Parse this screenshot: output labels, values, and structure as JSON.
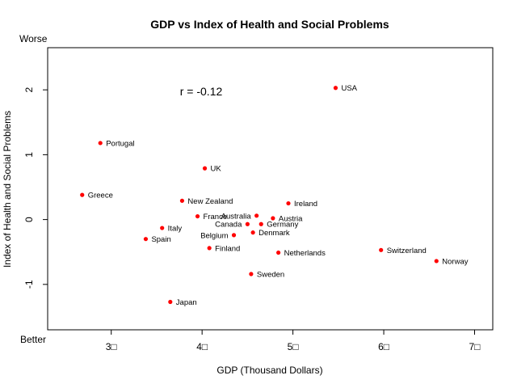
{
  "chart_data": {
    "type": "scatter",
    "title": "GDP vs Index of Health and Social Problems",
    "xlabel": "GDP (Thousand Dollars)",
    "ylabel": "Index of Health and Social Problems",
    "xlim": [
      2.3,
      7.2
    ],
    "ylim": [
      -1.7,
      2.65
    ],
    "x_ticks": [
      3,
      4,
      5,
      6,
      7
    ],
    "x_tick_labels": [
      "3□",
      "4□",
      "5□",
      "6□",
      "7□"
    ],
    "y_ticks": [
      -1,
      0,
      1,
      2
    ],
    "y_tick_labels": [
      "-1",
      "0",
      "1",
      "2"
    ],
    "y_top_label": "Worse",
    "y_bottom_label": "Better",
    "annotation": "r = -0.12",
    "point_color": "#ff0000",
    "grid": false,
    "points": [
      {
        "label": "USA",
        "x": 5.47,
        "y": 2.03,
        "side": "right"
      },
      {
        "label": "Portugal",
        "x": 2.88,
        "y": 1.18,
        "side": "right"
      },
      {
        "label": "UK",
        "x": 4.03,
        "y": 0.79,
        "side": "right"
      },
      {
        "label": "Greece",
        "x": 2.68,
        "y": 0.38,
        "side": "right"
      },
      {
        "label": "New Zealand",
        "x": 3.78,
        "y": 0.29,
        "side": "right"
      },
      {
        "label": "Ireland",
        "x": 4.95,
        "y": 0.25,
        "side": "right"
      },
      {
        "label": "France",
        "x": 3.95,
        "y": 0.05,
        "side": "right"
      },
      {
        "label": "Australia",
        "x": 4.6,
        "y": 0.06,
        "side": "left"
      },
      {
        "label": "Austria",
        "x": 4.78,
        "y": 0.02,
        "side": "right"
      },
      {
        "label": "Canada",
        "x": 4.5,
        "y": -0.07,
        "side": "left"
      },
      {
        "label": "Germany",
        "x": 4.65,
        "y": -0.07,
        "side": "right"
      },
      {
        "label": "Italy",
        "x": 3.56,
        "y": -0.13,
        "side": "right"
      },
      {
        "label": "Denmark",
        "x": 4.56,
        "y": -0.2,
        "side": "right"
      },
      {
        "label": "Belgium",
        "x": 4.35,
        "y": -0.24,
        "side": "left"
      },
      {
        "label": "Spain",
        "x": 3.38,
        "y": -0.3,
        "side": "right"
      },
      {
        "label": "Finland",
        "x": 4.08,
        "y": -0.44,
        "side": "right"
      },
      {
        "label": "Switzerland",
        "x": 5.97,
        "y": -0.47,
        "side": "right"
      },
      {
        "label": "Netherlands",
        "x": 4.84,
        "y": -0.51,
        "side": "right"
      },
      {
        "label": "Norway",
        "x": 6.58,
        "y": -0.64,
        "side": "right"
      },
      {
        "label": "Sweden",
        "x": 4.54,
        "y": -0.84,
        "side": "right"
      },
      {
        "label": "Japan",
        "x": 3.65,
        "y": -1.27,
        "side": "right"
      }
    ]
  }
}
